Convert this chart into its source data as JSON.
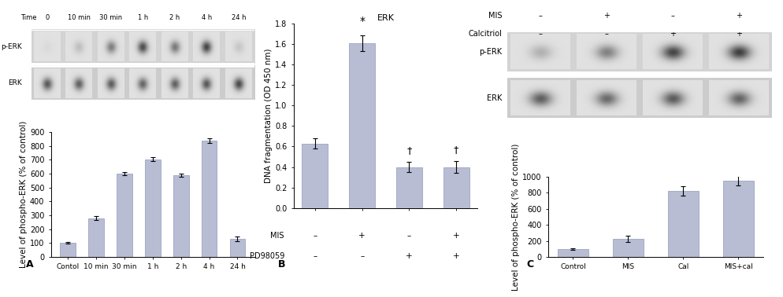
{
  "panel_A": {
    "categories": [
      "Contol",
      "10 min",
      "30 min",
      "1 h",
      "2 h",
      "4 h",
      "24 h"
    ],
    "values": [
      100,
      280,
      600,
      705,
      590,
      840,
      130
    ],
    "errors": [
      5,
      12,
      10,
      15,
      12,
      18,
      15
    ],
    "ylabel": "Level of phospho-ERK (% of control)",
    "ylim": [
      0,
      900
    ],
    "yticks": [
      0,
      100,
      200,
      300,
      400,
      500,
      600,
      700,
      800,
      900
    ],
    "label": "A",
    "bar_color": "#b8bdd4",
    "bar_edgecolor": "#9099b8",
    "blot_time_labels": [
      "0",
      "10 min",
      "30 min",
      "1 h",
      "2 h",
      "4 h",
      "24 h"
    ],
    "blot_perk_intensity": [
      0.04,
      0.18,
      0.52,
      0.78,
      0.55,
      0.82,
      0.14
    ],
    "blot_erk_intensity": [
      0.72,
      0.68,
      0.7,
      0.65,
      0.68,
      0.72,
      0.8
    ]
  },
  "panel_B": {
    "values": [
      0.63,
      1.61,
      0.4,
      0.4
    ],
    "errors": [
      0.05,
      0.08,
      0.05,
      0.06
    ],
    "ylabel": "DNA fragmentation (OD 450 nm)",
    "ylim": [
      0.0,
      1.8
    ],
    "yticks": [
      0.0,
      0.2,
      0.4,
      0.6,
      0.8,
      1.0,
      1.2,
      1.4,
      1.6,
      1.8
    ],
    "title": "ERK",
    "star_idx": 1,
    "dagger_idx": [
      2,
      3
    ],
    "mis_labels": [
      "–",
      "+",
      "–",
      "+"
    ],
    "pd_labels": [
      "–",
      "–",
      "+",
      "+"
    ],
    "label": "B",
    "bar_color": "#b8bdd4",
    "bar_edgecolor": "#9099b8"
  },
  "panel_C": {
    "categories": [
      "Control",
      "MIS",
      "Cal",
      "MIS+cal"
    ],
    "values": [
      100,
      225,
      820,
      950
    ],
    "errors": [
      10,
      35,
      60,
      60
    ],
    "ylabel": "Level of phospho-ERK (% of control)",
    "ylim": [
      0,
      1000
    ],
    "yticks": [
      0,
      200,
      400,
      600,
      800,
      1000
    ],
    "label": "C",
    "bar_color": "#b8bdd4",
    "bar_edgecolor": "#9099b8",
    "blot_mis_labels": [
      "–",
      "+",
      "–",
      "+"
    ],
    "blot_cal_labels": [
      "–",
      "–",
      "+",
      "+"
    ],
    "blot_perk_intensity": [
      0.25,
      0.5,
      0.82,
      0.85
    ],
    "blot_erk_intensity": [
      0.68,
      0.62,
      0.7,
      0.65
    ]
  },
  "figure": {
    "bg_color": "#ffffff",
    "bar_width": 0.55,
    "tick_fontsize": 7,
    "label_fontsize": 7.5,
    "title_fontsize": 8
  }
}
